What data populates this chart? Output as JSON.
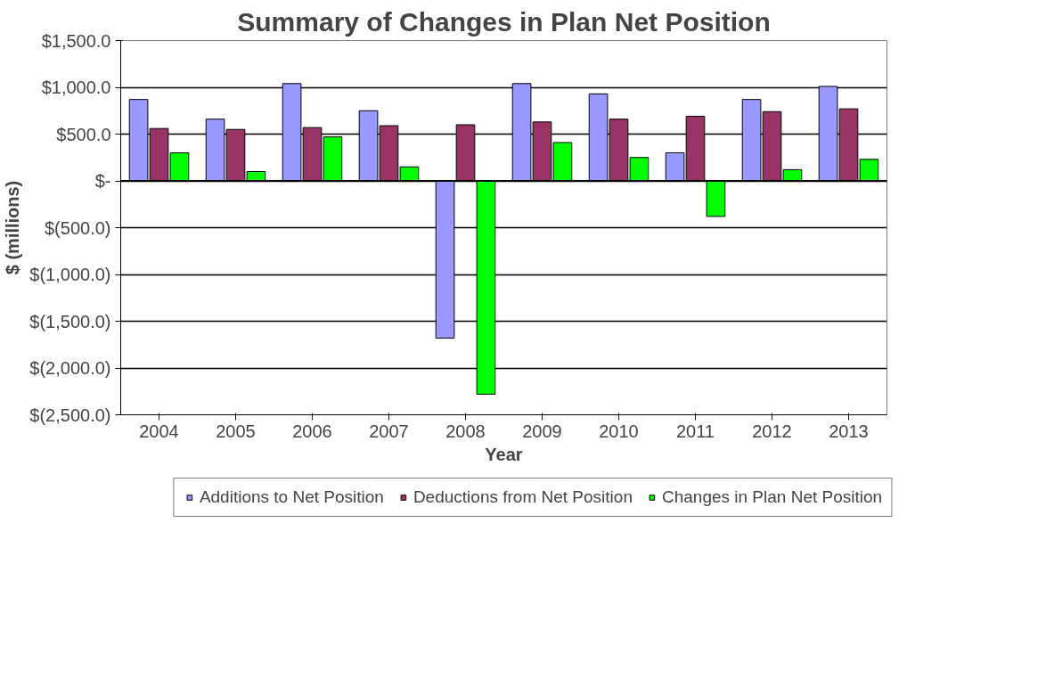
{
  "chart_data": {
    "type": "bar",
    "title": "Summary of Changes in Plan Net Position",
    "xlabel": "Year",
    "ylabel": "$ (millions)",
    "categories": [
      "2004",
      "2005",
      "2006",
      "2007",
      "2008",
      "2009",
      "2010",
      "2011",
      "2012",
      "2013"
    ],
    "series": [
      {
        "name": "Additions to Net Position",
        "color": "#9999ff",
        "values": [
          870,
          660,
          1040,
          750,
          -1680,
          1040,
          930,
          300,
          870,
          1010
        ]
      },
      {
        "name": "Deductions from Net Position",
        "color": "#993366",
        "values": [
          560,
          550,
          570,
          590,
          600,
          630,
          660,
          690,
          740,
          770
        ]
      },
      {
        "name": "Changes in Plan Net Position",
        "color": "#00ff00",
        "values": [
          300,
          100,
          470,
          150,
          -2280,
          410,
          250,
          -380,
          120,
          230
        ]
      }
    ],
    "ylim": [
      -2500,
      1500
    ],
    "yticks": [
      {
        "value": -2500,
        "label": "$(2,500.0)"
      },
      {
        "value": -2000,
        "label": "$(2,000.0)"
      },
      {
        "value": -1500,
        "label": "$(1,500.0)"
      },
      {
        "value": -1000,
        "label": "$(1,000.0)"
      },
      {
        "value": -500,
        "label": "$(500.0)"
      },
      {
        "value": 0,
        "label": "$-"
      },
      {
        "value": 500,
        "label": "$500.0"
      },
      {
        "value": 1000,
        "label": "$1,000.0"
      },
      {
        "value": 1500,
        "label": "$1,500.0"
      }
    ],
    "grid": "y",
    "legend": "bottom"
  }
}
